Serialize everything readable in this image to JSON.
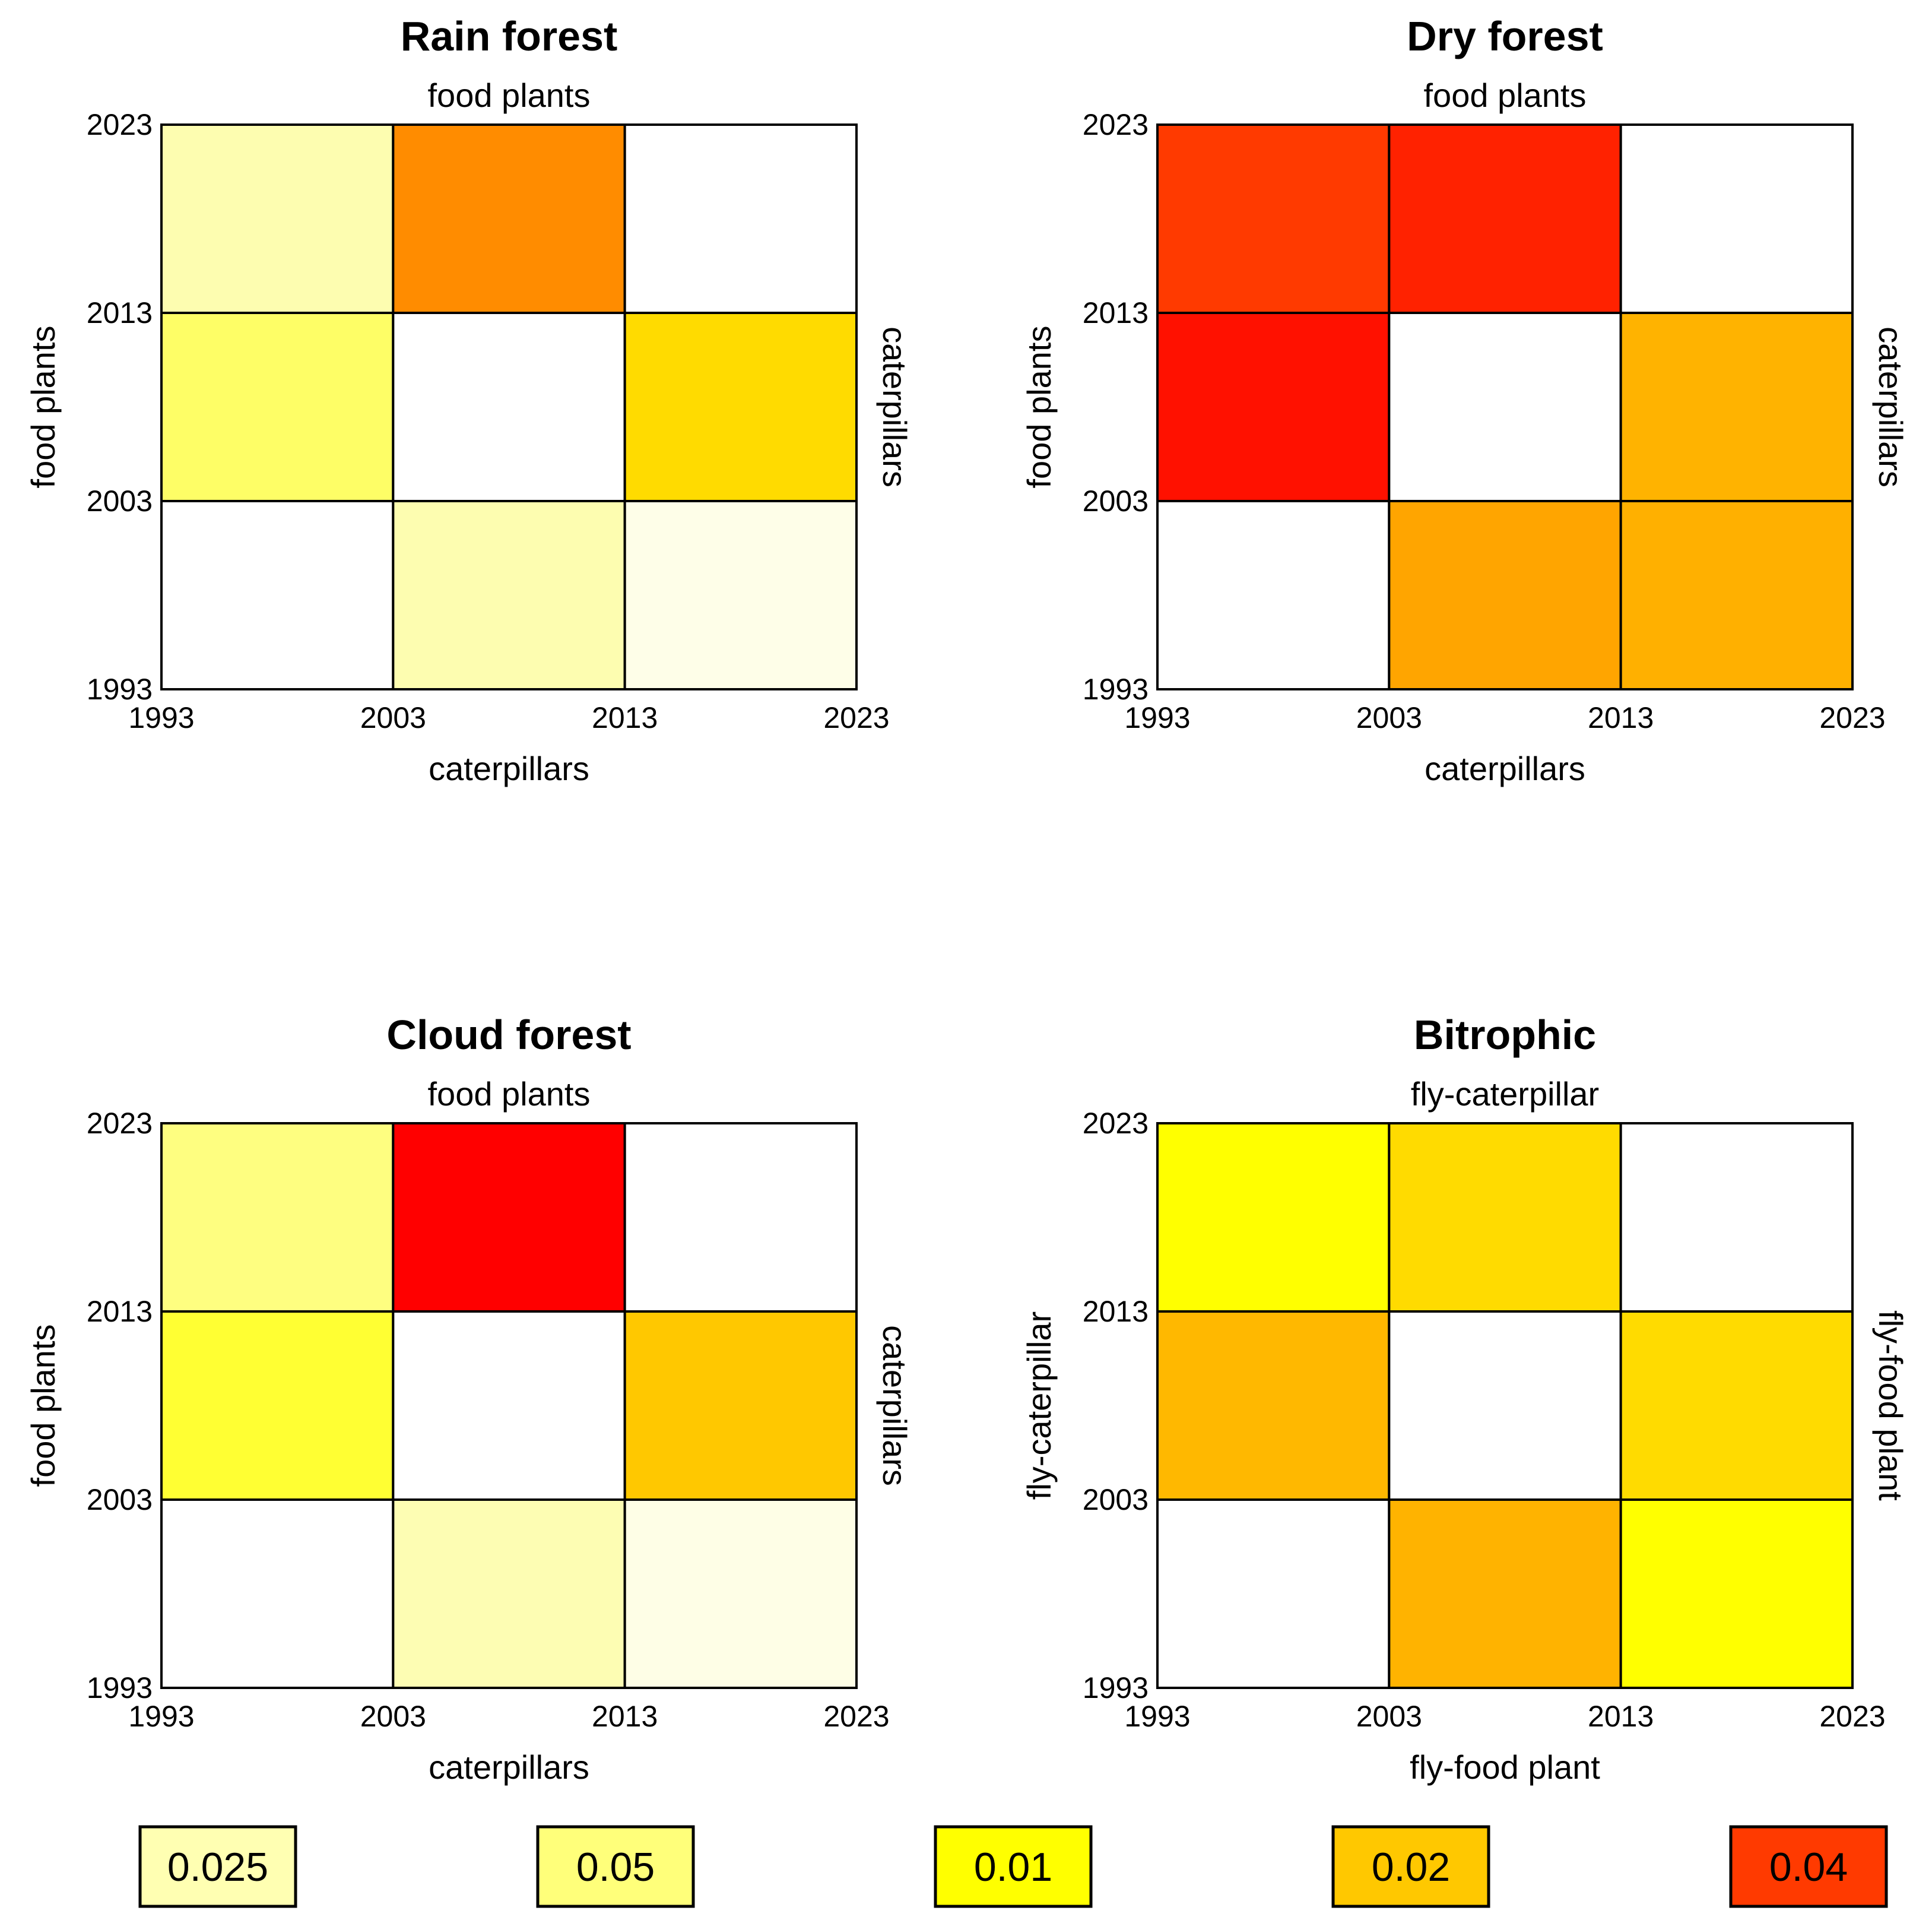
{
  "chart_data": [
    {
      "type": "heatmap",
      "title": "Rain forest",
      "top_label": "food plants",
      "xlabel": "caterpillars",
      "ylabel_left": "food plants",
      "ylabel_right": "caterpillars",
      "x_ticks": [
        "1993",
        "2003",
        "2013",
        "2023"
      ],
      "y_ticks": [
        "1993",
        "2003",
        "2013",
        "2023"
      ],
      "cells": [
        [
          "#fdfdb0",
          "#ff8c00",
          "#ffffff"
        ],
        [
          "#fefe66",
          "#ffffff",
          "#ffdb00"
        ],
        [
          "#ffffff",
          "#fdfdb0",
          "#fefee8"
        ]
      ]
    },
    {
      "type": "heatmap",
      "title": "Dry forest",
      "top_label": "food plants",
      "xlabel": "caterpillars",
      "ylabel_left": "food plants",
      "ylabel_right": "caterpillars",
      "x_ticks": [
        "1993",
        "2003",
        "2013",
        "2023"
      ],
      "y_ticks": [
        "1993",
        "2003",
        "2013",
        "2023"
      ],
      "cells": [
        [
          "#ff3a00",
          "#ff2200",
          "#ffffff"
        ],
        [
          "#ff1100",
          "#ffffff",
          "#ffb300"
        ],
        [
          "#ffffff",
          "#ffa500",
          "#ffb000"
        ]
      ]
    },
    {
      "type": "heatmap",
      "title": "Cloud forest",
      "top_label": "food plants",
      "xlabel": "caterpillars",
      "ylabel_left": "food plants",
      "ylabel_right": "caterpillars",
      "x_ticks": [
        "1993",
        "2003",
        "2013",
        "2023"
      ],
      "y_ticks": [
        "1993",
        "2003",
        "2013",
        "2023"
      ],
      "cells": [
        [
          "#fefe80",
          "#ff0000",
          "#ffffff"
        ],
        [
          "#ffff33",
          "#ffffff",
          "#ffc800"
        ],
        [
          "#ffffff",
          "#fdfdb3",
          "#fefee6"
        ]
      ]
    },
    {
      "type": "heatmap",
      "title": "Bitrophic",
      "top_label": "fly-caterpillar",
      "xlabel": "fly-food plant",
      "ylabel_left": "fly-caterpillar",
      "ylabel_right": "fly-food plant",
      "x_ticks": [
        "1993",
        "2003",
        "2013",
        "2023"
      ],
      "y_ticks": [
        "1993",
        "2003",
        "2013",
        "2023"
      ],
      "cells": [
        [
          "#ffff00",
          "#ffdb00",
          "#ffffff"
        ],
        [
          "#ffb800",
          "#ffffff",
          "#ffdb00"
        ],
        [
          "#ffffff",
          "#ffb300",
          "#ffff00"
        ]
      ]
    }
  ],
  "legend": [
    {
      "label": "0.025",
      "color": "#ffffb2"
    },
    {
      "label": "0.05",
      "color": "#ffff7a"
    },
    {
      "label": "0.01",
      "color": "#ffff00"
    },
    {
      "label": "0.02",
      "color": "#ffc800"
    },
    {
      "label": "0.04",
      "color": "#ff3a00"
    }
  ]
}
